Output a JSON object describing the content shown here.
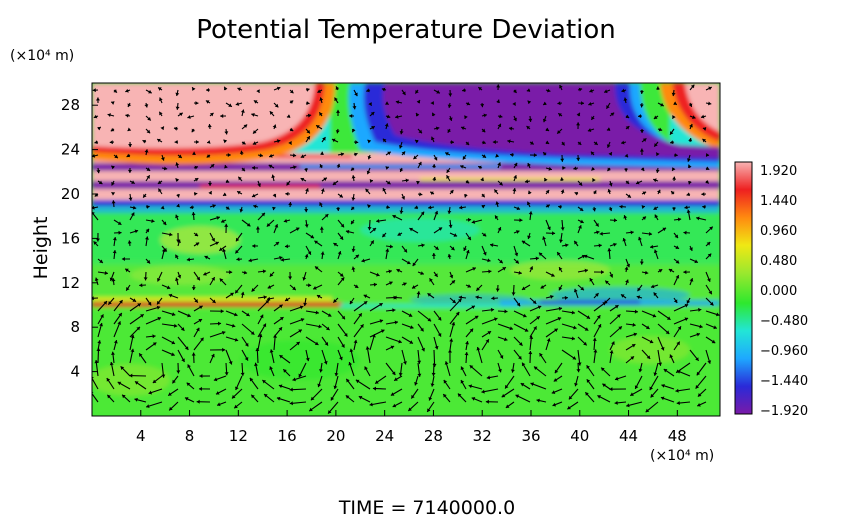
{
  "chart_data": {
    "type": "heatmap",
    "title": "Potential Temperature Deviation",
    "ylabel": "Height",
    "y_unit_label": "(×10⁴ m)",
    "x_unit_label": "(×10⁴ m)",
    "footer": "TIME = 7140000.0",
    "x_ticks": [
      4,
      8,
      12,
      16,
      20,
      24,
      28,
      32,
      36,
      40,
      44,
      48
    ],
    "y_ticks": [
      4,
      8,
      12,
      16,
      20,
      24,
      28
    ],
    "xlim": [
      0,
      51.5
    ],
    "ylim": [
      0,
      30
    ],
    "colorbar": {
      "labels": [
        "1.920",
        "1.440",
        "0.960",
        "0.480",
        "0.000",
        "−0.480",
        "−0.960",
        "−1.440",
        "−1.920"
      ],
      "min": -1.92,
      "max": 1.92,
      "colors": [
        "#7a1aa8",
        "#2a2ad8",
        "#1ea8ff",
        "#22e6d6",
        "#2ee82e",
        "#9be82e",
        "#f0e814",
        "#ff8a10",
        "#ee2020",
        "#f8b4b4"
      ]
    },
    "field_summary": [
      {
        "region": "upper-left lobe",
        "x": [
          0,
          19
        ],
        "y": [
          22,
          30
        ],
        "value": 1.92
      },
      {
        "region": "upper-right lobe",
        "x": [
          43,
          51.5
        ],
        "y": [
          24,
          30
        ],
        "value": 1.92
      },
      {
        "region": "upper-center lobe",
        "x": [
          24,
          42
        ],
        "y": [
          23,
          30
        ],
        "value": -1.92
      },
      {
        "region": "stratified band",
        "x": [
          0,
          51.5
        ],
        "y": [
          19,
          23
        ],
        "value": 0.0
      },
      {
        "region": "inversion line",
        "x": [
          0,
          51.5
        ],
        "y": [
          9.5,
          10
        ],
        "value": 0.9
      },
      {
        "region": "lower layer",
        "x": [
          0,
          51.5
        ],
        "y": [
          0,
          9.5
        ],
        "value": 0.2
      }
    ],
    "wind_vectors": "lower-layer circulation cells at x≈ 5, 10, 17, 24, 33, 38, 44, 49 (×10⁴ m)"
  }
}
